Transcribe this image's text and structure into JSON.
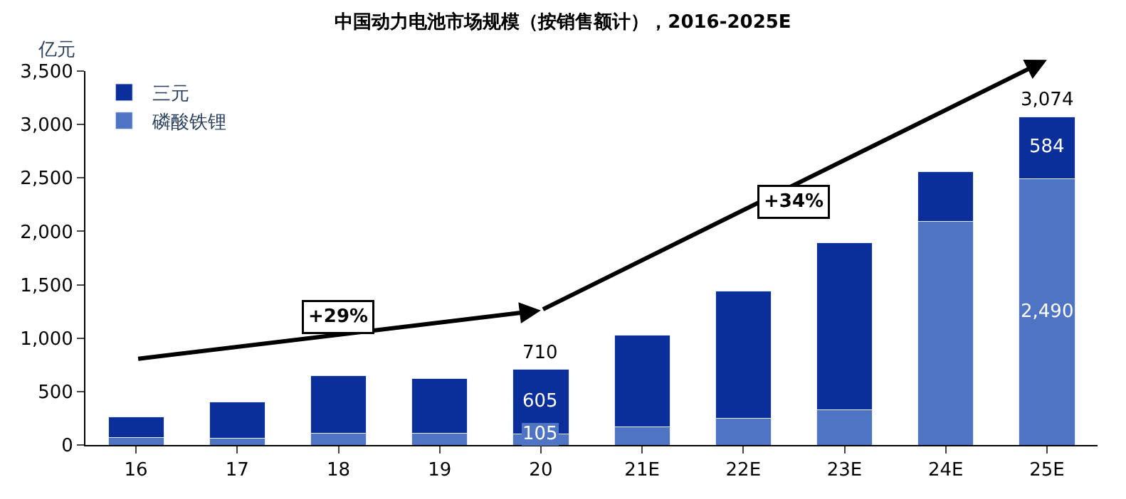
{
  "chart_data": {
    "type": "bar",
    "title": "中国动力电池市场规模（按销售额计），2016-2025E",
    "ylabel": "亿元",
    "categories": [
      "16",
      "17",
      "18",
      "19",
      "20",
      "21E",
      "22E",
      "23E",
      "24E",
      "25E"
    ],
    "stacked": true,
    "series": [
      {
        "name": "磷酸铁锂",
        "color": "#4f74c4",
        "values": [
          70,
          60,
          110,
          110,
          105,
          170,
          250,
          330,
          2090,
          2490
        ],
        "value_labels": [
          null,
          null,
          null,
          null,
          "105",
          null,
          null,
          null,
          null,
          "2,490"
        ]
      },
      {
        "name": "三元",
        "color": "#0a2f9a",
        "values": [
          190,
          340,
          540,
          510,
          605,
          860,
          1190,
          1560,
          470,
          584
        ],
        "value_labels": [
          null,
          null,
          null,
          null,
          "605",
          null,
          null,
          null,
          null,
          "584"
        ]
      }
    ],
    "totals": [
      null,
      null,
      null,
      null,
      "710",
      null,
      null,
      null,
      null,
      "3,074"
    ],
    "annotations": [
      "+29%",
      "+34%"
    ],
    "ylim": [
      0,
      3500
    ],
    "yticks": [
      0,
      500,
      {
        "value": 1000,
        "label": "1,000"
      },
      {
        "value": 1500,
        "label": "1,500"
      },
      {
        "value": 2000,
        "label": "2,000"
      },
      {
        "value": 2500,
        "label": "2,500"
      },
      {
        "value": 3000,
        "label": "3,000"
      },
      {
        "value": 3500,
        "label": "3,500"
      }
    ],
    "legend": "top left"
  }
}
